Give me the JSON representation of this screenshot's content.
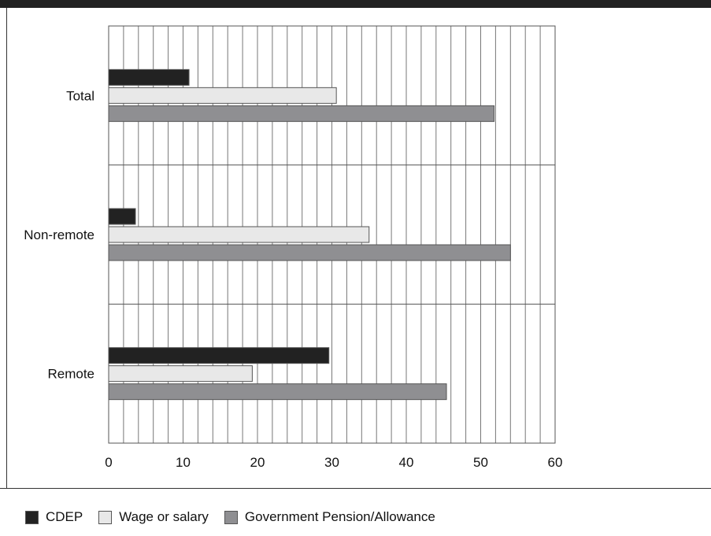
{
  "chart_data": {
    "type": "bar",
    "orientation": "horizontal",
    "categories": [
      "Total",
      "Non-remote",
      "Remote"
    ],
    "series": [
      {
        "name": "CDEP",
        "color": "#222222",
        "values": [
          10.8,
          3.6,
          29.6
        ]
      },
      {
        "name": "Wage or salary",
        "color": "#e8e8e8",
        "values": [
          30.6,
          35.0,
          19.3
        ]
      },
      {
        "name": "Government Pension/Allowance",
        "color": "#8f8f92",
        "values": [
          51.8,
          54.0,
          45.4
        ]
      }
    ],
    "xlim": [
      0,
      60
    ],
    "xticks": [
      "0",
      "10",
      "20",
      "30",
      "40",
      "50",
      "60"
    ],
    "minor_gridline_step": 2,
    "grid": true,
    "legend_position": "bottom"
  }
}
